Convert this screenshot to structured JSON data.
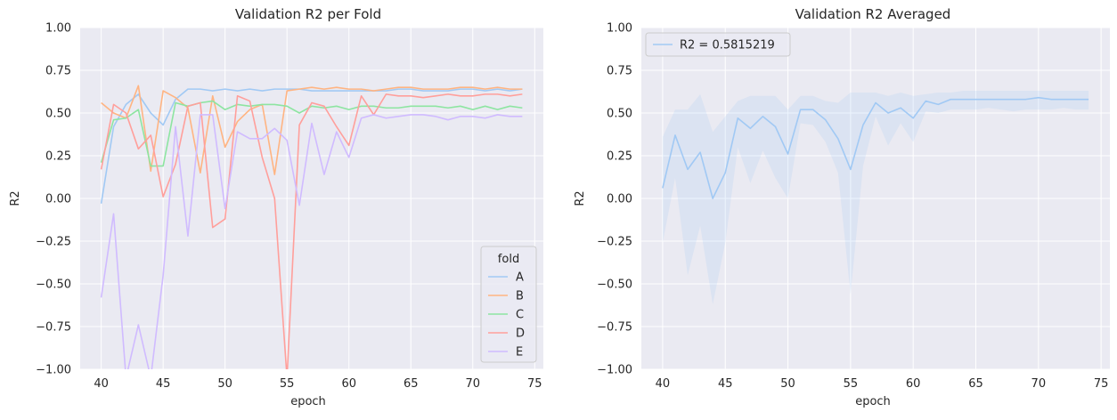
{
  "chart_data": [
    {
      "type": "line",
      "title": "Validation R2 per Fold",
      "xlabel": "epoch",
      "ylabel": "R2",
      "xlim": [
        38.3,
        75.7
      ],
      "ylim": [
        -1.0,
        1.0
      ],
      "xticks": [
        "40",
        "45",
        "50",
        "55",
        "60",
        "65",
        "70",
        "75"
      ],
      "xtick_values": [
        40,
        45,
        50,
        55,
        60,
        65,
        70,
        75
      ],
      "yticks": [
        "−1.00",
        "−0.75",
        "−0.50",
        "−0.25",
        "0.00",
        "0.25",
        "0.50",
        "0.75",
        "1.00"
      ],
      "ytick_values": [
        -1.0,
        -0.75,
        -0.5,
        -0.25,
        0.0,
        0.25,
        0.5,
        0.75,
        1.0
      ],
      "grid": true,
      "legend": {
        "title": "fold",
        "position": "lower-right"
      },
      "x": [
        40,
        41,
        42,
        43,
        44,
        45,
        46,
        47,
        48,
        49,
        50,
        51,
        52,
        53,
        54,
        55,
        56,
        57,
        58,
        59,
        60,
        61,
        62,
        63,
        64,
        65,
        66,
        67,
        68,
        69,
        70,
        71,
        72,
        73,
        74
      ],
      "series": [
        {
          "name": "A",
          "color": "#a1c9f4",
          "values": [
            -0.03,
            0.42,
            0.55,
            0.61,
            0.5,
            0.43,
            0.58,
            0.64,
            0.64,
            0.63,
            0.64,
            0.63,
            0.64,
            0.63,
            0.64,
            0.64,
            0.64,
            0.63,
            0.63,
            0.63,
            0.63,
            0.63,
            0.63,
            0.63,
            0.64,
            0.64,
            0.63,
            0.63,
            0.63,
            0.64,
            0.64,
            0.63,
            0.64,
            0.63,
            0.64
          ]
        },
        {
          "name": "B",
          "color": "#ffb482",
          "values": [
            0.56,
            0.5,
            0.47,
            0.66,
            0.16,
            0.63,
            0.59,
            0.53,
            0.15,
            0.6,
            0.3,
            0.45,
            0.52,
            0.55,
            0.14,
            0.63,
            0.64,
            0.65,
            0.64,
            0.65,
            0.64,
            0.64,
            0.63,
            0.64,
            0.65,
            0.65,
            0.64,
            0.64,
            0.64,
            0.65,
            0.65,
            0.64,
            0.65,
            0.64,
            0.64
          ]
        },
        {
          "name": "C",
          "color": "#8de5a1",
          "values": [
            0.21,
            0.46,
            0.47,
            0.52,
            0.19,
            0.19,
            0.56,
            0.54,
            0.56,
            0.57,
            0.52,
            0.55,
            0.54,
            0.55,
            0.55,
            0.54,
            0.5,
            0.54,
            0.53,
            0.54,
            0.52,
            0.54,
            0.54,
            0.53,
            0.53,
            0.54,
            0.54,
            0.54,
            0.53,
            0.54,
            0.52,
            0.54,
            0.52,
            0.54,
            0.53
          ]
        },
        {
          "name": "D",
          "color": "#ff9f9b",
          "values": [
            0.17,
            0.55,
            0.5,
            0.29,
            0.37,
            0.01,
            0.2,
            0.54,
            0.56,
            -0.17,
            -0.12,
            0.6,
            0.57,
            0.24,
            0.0,
            -1.05,
            0.43,
            0.56,
            0.54,
            0.42,
            0.31,
            0.6,
            0.49,
            0.61,
            0.6,
            0.6,
            0.59,
            0.6,
            0.61,
            0.6,
            0.6,
            0.61,
            0.61,
            0.6,
            0.61
          ]
        },
        {
          "name": "E",
          "color": "#d0bbff",
          "values": [
            -0.58,
            -0.09,
            -1.05,
            -0.74,
            -1.05,
            -0.45,
            0.42,
            -0.22,
            0.49,
            0.49,
            -0.06,
            0.39,
            0.35,
            0.35,
            0.41,
            0.34,
            -0.04,
            0.44,
            0.14,
            0.39,
            0.24,
            0.47,
            0.49,
            0.47,
            0.48,
            0.49,
            0.49,
            0.48,
            0.46,
            0.48,
            0.48,
            0.47,
            0.49,
            0.48,
            0.48
          ]
        }
      ]
    },
    {
      "type": "line",
      "title": "Validation R2 Averaged",
      "xlabel": "epoch",
      "ylabel": "R2",
      "xlim": [
        38.3,
        75.7
      ],
      "ylim": [
        -1.0,
        1.0
      ],
      "xticks": [
        "40",
        "45",
        "50",
        "55",
        "60",
        "65",
        "70",
        "75"
      ],
      "xtick_values": [
        40,
        45,
        50,
        55,
        60,
        65,
        70,
        75
      ],
      "yticks": [
        "−1.00",
        "−0.75",
        "−0.50",
        "−0.25",
        "0.00",
        "0.25",
        "0.50",
        "0.75",
        "1.00"
      ],
      "ytick_values": [
        -1.0,
        -0.75,
        -0.5,
        -0.25,
        0.0,
        0.25,
        0.5,
        0.75,
        1.0
      ],
      "grid": true,
      "legend": {
        "position": "upper-left"
      },
      "x": [
        40,
        41,
        42,
        43,
        44,
        45,
        46,
        47,
        48,
        49,
        50,
        51,
        52,
        53,
        54,
        55,
        56,
        57,
        58,
        59,
        60,
        61,
        62,
        63,
        64,
        65,
        66,
        67,
        68,
        69,
        70,
        71,
        72,
        73,
        74
      ],
      "series": [
        {
          "name": "R2 = 0.5815219",
          "color": "#a1c9f4",
          "values": [
            0.06,
            0.37,
            0.17,
            0.27,
            0.0,
            0.15,
            0.47,
            0.41,
            0.48,
            0.42,
            0.26,
            0.52,
            0.52,
            0.46,
            0.35,
            0.17,
            0.43,
            0.56,
            0.5,
            0.53,
            0.47,
            0.57,
            0.55,
            0.58,
            0.58,
            0.58,
            0.58,
            0.58,
            0.58,
            0.58,
            0.59,
            0.58,
            0.58,
            0.58,
            0.58
          ],
          "band_upper": [
            0.36,
            0.52,
            0.52,
            0.61,
            0.39,
            0.48,
            0.57,
            0.6,
            0.6,
            0.6,
            0.52,
            0.6,
            0.6,
            0.57,
            0.56,
            0.62,
            0.62,
            0.62,
            0.6,
            0.62,
            0.6,
            0.61,
            0.62,
            0.62,
            0.63,
            0.63,
            0.63,
            0.63,
            0.63,
            0.63,
            0.63,
            0.63,
            0.63,
            0.63,
            0.63
          ],
          "band_lower": [
            -0.26,
            0.12,
            -0.45,
            -0.16,
            -0.62,
            -0.26,
            0.3,
            0.09,
            0.28,
            0.12,
            0.0,
            0.44,
            0.43,
            0.33,
            0.15,
            -0.56,
            0.19,
            0.48,
            0.31,
            0.44,
            0.33,
            0.51,
            0.5,
            0.52,
            0.52,
            0.52,
            0.53,
            0.52,
            0.51,
            0.52,
            0.52,
            0.52,
            0.53,
            0.52,
            0.52
          ]
        }
      ]
    }
  ]
}
